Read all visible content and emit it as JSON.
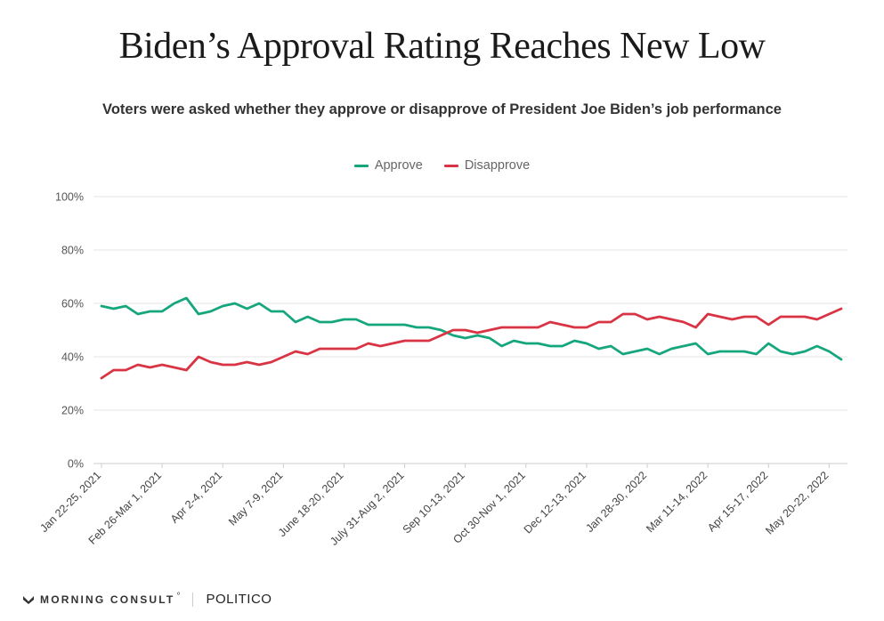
{
  "header": {
    "title": "Biden’s Approval Rating Reaches New Low",
    "subtitle": "Voters were asked whether they approve or disapprove of President Joe Biden’s job performance"
  },
  "legend": [
    {
      "label": "Approve",
      "color": "#16a67e"
    },
    {
      "label": "Disapprove",
      "color": "#d93444"
    }
  ],
  "footer": {
    "brand1": "MORNING CONSULT",
    "brand1_mark": "°",
    "brand2": "POLITICO"
  },
  "chart_data": {
    "type": "line",
    "title": "Biden’s Approval Rating Reaches New Low",
    "subtitle": "Voters were asked whether they approve or disapprove of President Joe Biden’s job performance",
    "ylim": [
      0,
      100
    ],
    "y_ticks": [
      "0%",
      "20%",
      "40%",
      "60%",
      "80%",
      "100%"
    ],
    "y_tick_values": [
      0,
      20,
      40,
      60,
      80,
      100
    ],
    "grid": true,
    "legend_position": "top-center",
    "x_tick_labels": [
      {
        "index": 0,
        "label": "Jan 22-25, 2021"
      },
      {
        "index": 5,
        "label": "Feb 26-Mar 1, 2021"
      },
      {
        "index": 10,
        "label": "Apr 2-4, 2021"
      },
      {
        "index": 15,
        "label": "May 7-9, 2021"
      },
      {
        "index": 20,
        "label": "June 18-20, 2021"
      },
      {
        "index": 25,
        "label": "July 31-Aug 2, 2021"
      },
      {
        "index": 30,
        "label": "Sep 10-13, 2021"
      },
      {
        "index": 35,
        "label": "Oct 30-Nov 1, 2021"
      },
      {
        "index": 40,
        "label": "Dec 12-13, 2021"
      },
      {
        "index": 45,
        "label": "Jan 28-30, 2022"
      },
      {
        "index": 50,
        "label": "Mar 11-14, 2022"
      },
      {
        "index": 55,
        "label": "Apr 15-17, 2022"
      },
      {
        "index": 60,
        "label": "May 20-22, 2022"
      }
    ],
    "series": [
      {
        "name": "Approve",
        "color": "#16a67e",
        "values": [
          59,
          58,
          59,
          56,
          57,
          57,
          60,
          62,
          56,
          57,
          59,
          60,
          58,
          60,
          57,
          57,
          53,
          55,
          53,
          53,
          54,
          54,
          52,
          52,
          52,
          52,
          51,
          51,
          50,
          48,
          47,
          48,
          47,
          44,
          46,
          45,
          45,
          44,
          44,
          46,
          45,
          43,
          44,
          41,
          42,
          43,
          41,
          43,
          44,
          45,
          41,
          42,
          42,
          42,
          41,
          45,
          42,
          41,
          42,
          44,
          42,
          39
        ]
      },
      {
        "name": "Disapprove",
        "color": "#d93444",
        "values": [
          32,
          35,
          35,
          37,
          36,
          37,
          36,
          35,
          40,
          38,
          37,
          37,
          38,
          37,
          38,
          40,
          42,
          41,
          43,
          43,
          43,
          43,
          45,
          44,
          45,
          46,
          46,
          46,
          48,
          50,
          50,
          49,
          50,
          51,
          51,
          51,
          51,
          53,
          52,
          51,
          51,
          53,
          53,
          56,
          56,
          54,
          55,
          54,
          53,
          51,
          56,
          55,
          54,
          55,
          55,
          52,
          55,
          55,
          55,
          54,
          56,
          58
        ]
      }
    ]
  }
}
